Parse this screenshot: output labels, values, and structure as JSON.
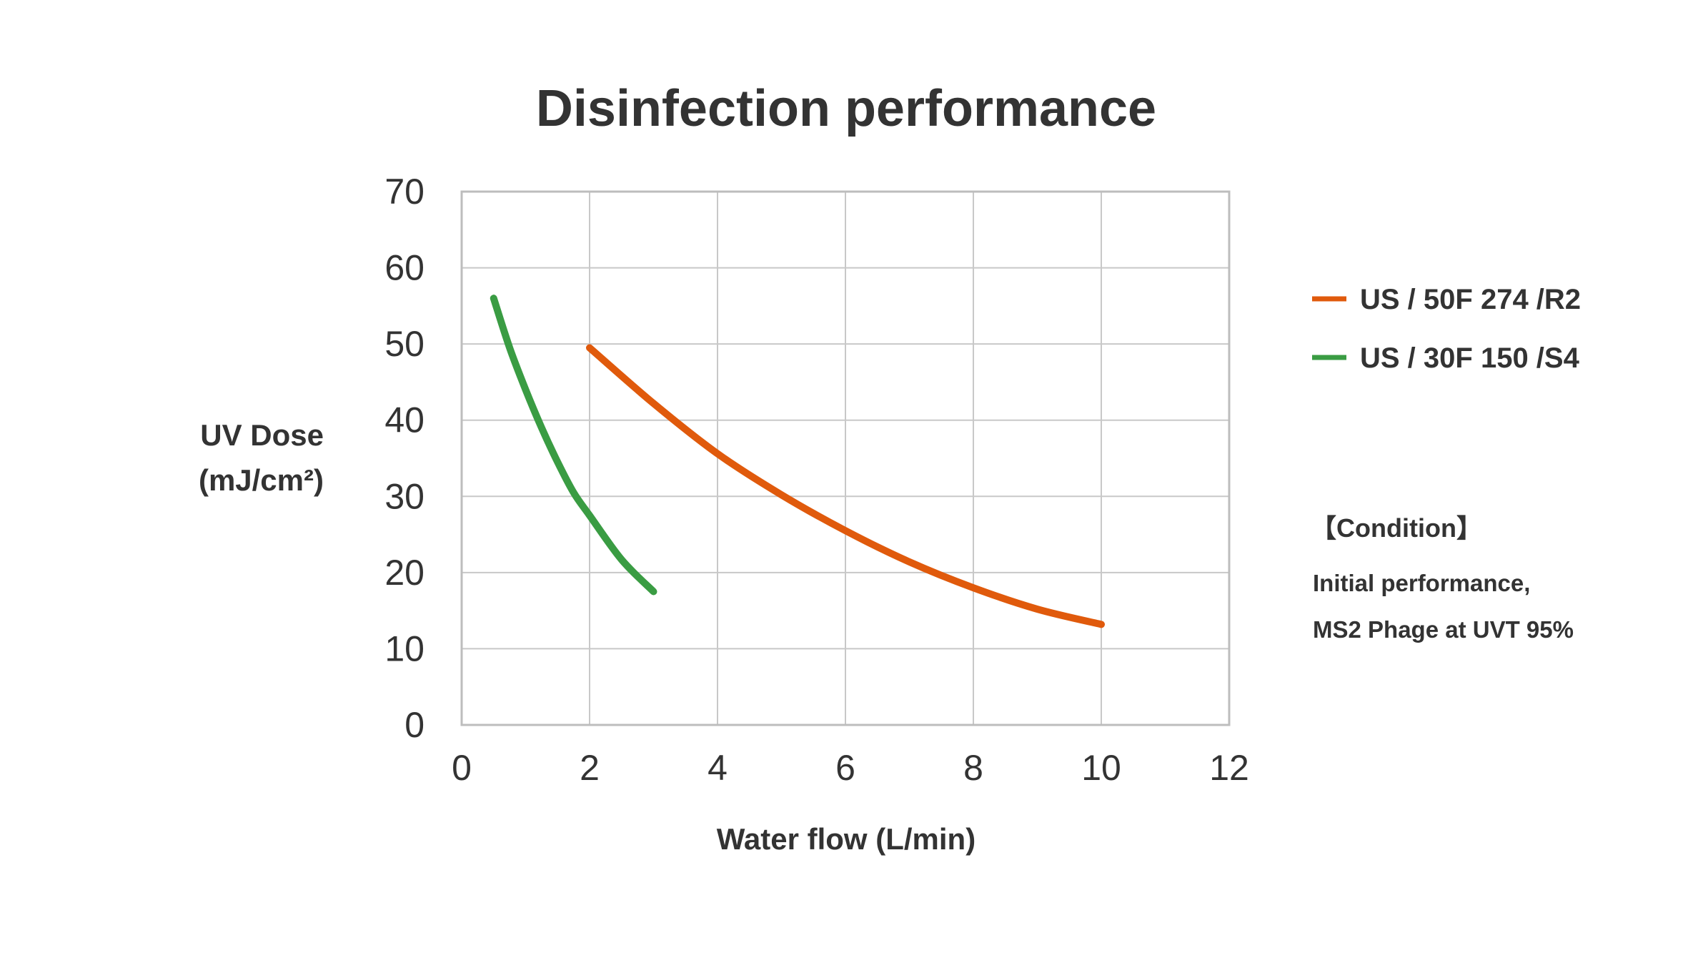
{
  "chart_data": {
    "type": "line",
    "title": "Disinfection performance",
    "xlabel": "Water flow (L/min)",
    "ylabel_line1": "UV Dose",
    "ylabel_line2": "(mJ/cm²)",
    "xlim": [
      0,
      12
    ],
    "ylim": [
      0,
      70
    ],
    "x_ticks": [
      0,
      2,
      4,
      6,
      8,
      10,
      12
    ],
    "y_ticks": [
      0,
      10,
      20,
      30,
      40,
      50,
      60,
      70
    ],
    "grid": true,
    "legend_position": "right",
    "series": [
      {
        "name": "US / 50F 274 /R2",
        "color": "#e05a0c",
        "x": [
          2,
          3,
          4,
          5,
          6,
          7,
          8,
          9,
          10
        ],
        "y": [
          49.5,
          42.2,
          35.6,
          30.2,
          25.5,
          21.4,
          18.0,
          15.2,
          13.2
        ]
      },
      {
        "name": "US / 30F 150 /S4",
        "color": "#3a9c43",
        "x": [
          0.5,
          0.75,
          1.0,
          1.25,
          1.5,
          1.75,
          2.0,
          2.5,
          3.0
        ],
        "y": [
          56,
          49.5,
          44.0,
          39.0,
          34.5,
          30.5,
          27.5,
          21.7,
          17.5
        ]
      }
    ],
    "condition": {
      "title": "【Condition】",
      "lines": [
        "Initial performance,",
        "MS2 Phage at UVT 95%"
      ]
    }
  }
}
